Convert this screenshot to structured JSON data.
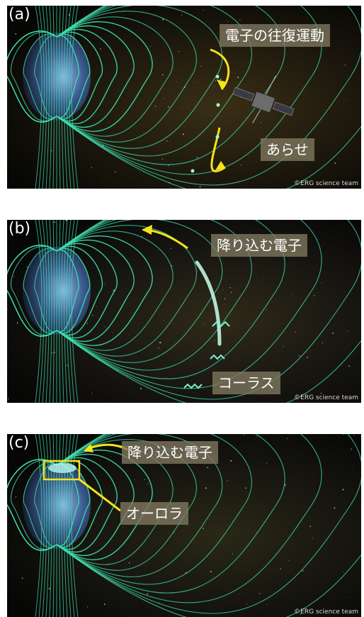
{
  "panels": [
    {
      "label": "(a)",
      "captions": [
        "電子の往復運動",
        "あらせ"
      ],
      "credit": "©ERG science team"
    },
    {
      "label": "(b)",
      "captions": [
        "降り込む電子",
        "コーラス"
      ],
      "credit": "©ERG science team"
    },
    {
      "label": "(c)",
      "captions": [
        "降り込む電子",
        "オーロラ"
      ],
      "credit": "©ERG science team"
    }
  ],
  "colors": {
    "field_lines": "#3fe0b0",
    "arrow": "#f5e21a",
    "earth_dark": "#1a2540",
    "earth_light": "#7fa6d6",
    "tag_bg": "#807860"
  }
}
